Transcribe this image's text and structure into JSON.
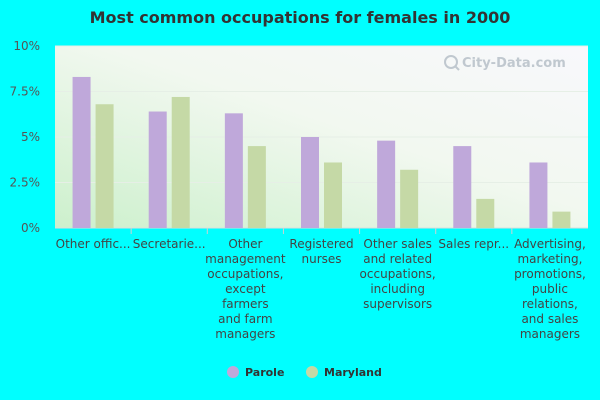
{
  "chart_data": {
    "type": "bar",
    "title": "Most common occupations for females in 2000",
    "categories": [
      "Other offic...",
      "Secretarie...",
      "Other management occupations, except farmers and farm managers",
      "Registered nurses",
      "Other sales and related occupations, including supervisors",
      "Sales repr...",
      "Advertising, marketing, promotions, public relations, and sales managers"
    ],
    "category_lines": [
      [
        "Other offic..."
      ],
      [
        "Secretarie..."
      ],
      [
        "Other",
        "management",
        "occupations,",
        "except",
        "farmers",
        "and farm",
        "managers"
      ],
      [
        "Registered",
        "nurses"
      ],
      [
        "Other sales",
        "and related",
        "occupations,",
        "including",
        "supervisors"
      ],
      [
        "Sales repr..."
      ],
      [
        "Advertising,",
        "marketing,",
        "promotions,",
        "public",
        "relations,",
        "and sales",
        "managers"
      ]
    ],
    "series": [
      {
        "name": "Parole",
        "color": "#bfa8da",
        "values": [
          8.3,
          6.4,
          6.3,
          5.0,
          4.8,
          4.5,
          3.6
        ]
      },
      {
        "name": "Maryland",
        "color": "#c5d9a6",
        "values": [
          6.8,
          7.2,
          4.5,
          3.6,
          3.2,
          1.6,
          0.9
        ]
      }
    ],
    "y_ticks": [
      "0%",
      "2.5%",
      "5%",
      "7.5%",
      "10%"
    ],
    "y_tick_values": [
      0,
      2.5,
      5,
      7.5,
      10
    ],
    "ylim": [
      0,
      10
    ],
    "xlabel": "",
    "ylabel": "",
    "grid": true,
    "legend_position": "bottom"
  },
  "watermark": "City-Data.com"
}
